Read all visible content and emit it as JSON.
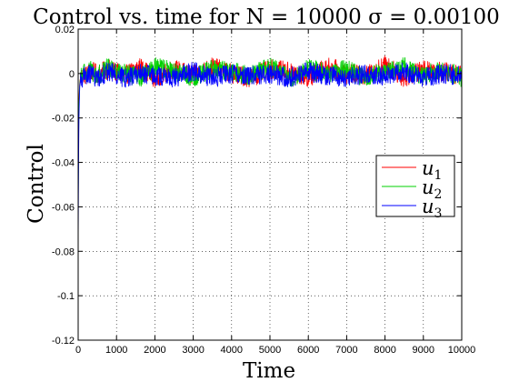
{
  "chart_data": {
    "type": "line",
    "title": "Control vs. time for N = 10000 σ = 0.00100",
    "xlabel": "Time",
    "ylabel": "Control",
    "xlim": [
      0,
      10000
    ],
    "ylim": [
      -0.12,
      0.02
    ],
    "x_ticks": [
      0,
      1000,
      2000,
      3000,
      4000,
      5000,
      6000,
      7000,
      8000,
      9000,
      10000
    ],
    "x_tick_labels": [
      "0",
      "1000",
      "2000",
      "3000",
      "4000",
      "5000",
      "6000",
      "7000",
      "8000",
      "9000",
      "10000"
    ],
    "y_ticks": [
      0.02,
      0,
      -0.02,
      -0.04,
      -0.06,
      -0.08,
      -0.1,
      -0.12
    ],
    "y_tick_labels": [
      "0.02",
      "0",
      "-0.02",
      "-0.04",
      "-0.06",
      "-0.08",
      "-0.1",
      "-0.12"
    ],
    "grid": true,
    "legend_position": "right",
    "series": [
      {
        "name": "u1",
        "label_base": "u",
        "label_sub": "1",
        "color": "#ff0000",
        "x": [
          0,
          10,
          20,
          40,
          60,
          100,
          150,
          200,
          300,
          500,
          800,
          1200,
          1600,
          2000,
          2500,
          3000,
          3500,
          4000,
          4500,
          5000,
          5500,
          6000,
          6500,
          7000,
          7500,
          8000,
          8500,
          9000,
          9500,
          10000
        ],
        "values": [
          -0.047,
          -0.03,
          -0.012,
          -0.004,
          -0.002,
          -0.001,
          0.0,
          -0.001,
          0.001,
          0.0,
          0.002,
          -0.001,
          0.003,
          -0.002,
          0.002,
          -0.001,
          0.003,
          0.0,
          -0.002,
          0.002,
          0.001,
          -0.002,
          0.003,
          0.0,
          -0.001,
          0.004,
          -0.002,
          0.002,
          0.001,
          -0.001
        ],
        "noise_amplitude": 0.0045
      },
      {
        "name": "u2",
        "label_base": "u",
        "label_sub": "2",
        "color": "#00d000",
        "x": [
          0,
          10,
          20,
          40,
          60,
          100,
          150,
          200,
          300,
          500,
          800,
          1200,
          1600,
          2000,
          2500,
          3000,
          3500,
          4000,
          4500,
          5000,
          5500,
          6000,
          6500,
          7000,
          7500,
          8000,
          8500,
          9000,
          9500,
          10000
        ],
        "values": [
          -0.06,
          -0.035,
          -0.015,
          -0.005,
          -0.002,
          -0.001,
          0.001,
          0.0,
          0.002,
          -0.001,
          0.003,
          0.0,
          -0.002,
          0.003,
          0.001,
          -0.002,
          0.002,
          0.001,
          -0.001,
          0.003,
          -0.002,
          0.002,
          0.0,
          0.002,
          -0.002,
          0.001,
          0.003,
          -0.001,
          0.002,
          -0.002
        ],
        "noise_amplitude": 0.0045
      },
      {
        "name": "u3",
        "label_base": "u",
        "label_sub": "3",
        "color": "#0000ff",
        "x": [
          0,
          10,
          20,
          40,
          60,
          100,
          150,
          200,
          300,
          500,
          800,
          1200,
          1600,
          2000,
          2500,
          3000,
          3500,
          4000,
          4500,
          5000,
          5500,
          6000,
          6500,
          7000,
          7500,
          8000,
          8500,
          9000,
          9500,
          10000
        ],
        "values": [
          -0.08,
          -0.045,
          -0.02,
          -0.006,
          -0.003,
          -0.002,
          -0.001,
          -0.002,
          0.0,
          -0.002,
          0.001,
          -0.002,
          0.0,
          -0.001,
          -0.002,
          0.001,
          -0.002,
          0.0,
          -0.001,
          0.0,
          -0.002,
          0.001,
          -0.001,
          -0.002,
          0.0,
          -0.001,
          0.001,
          -0.002,
          0.0,
          -0.001
        ],
        "noise_amplitude": 0.0045
      }
    ]
  }
}
